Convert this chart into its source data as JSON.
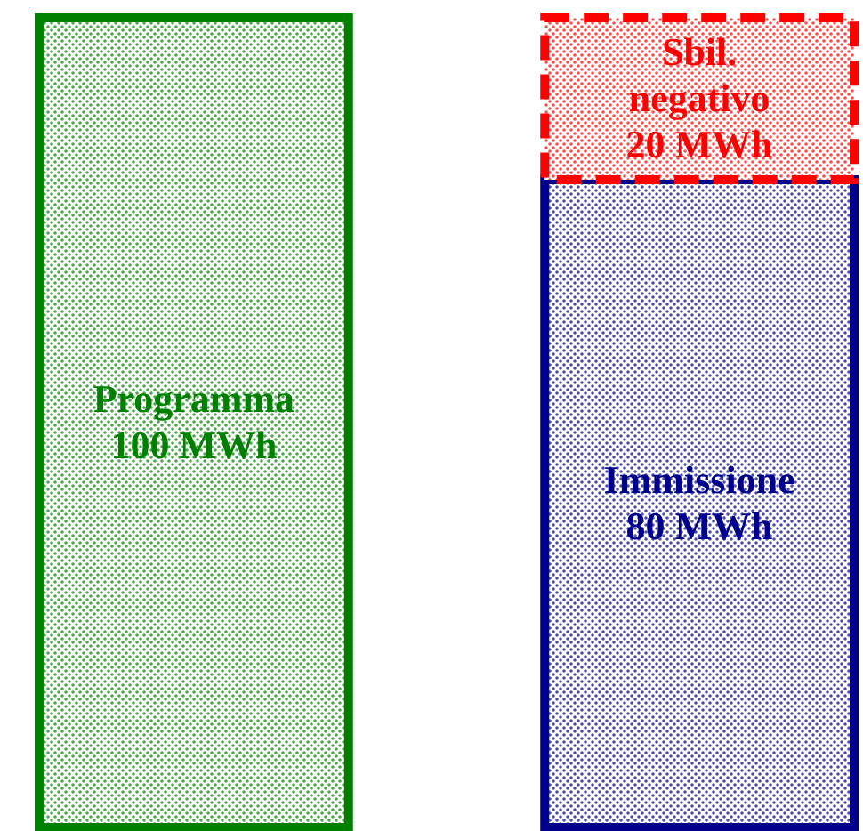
{
  "chart_data": {
    "type": "bar",
    "stacked": true,
    "categories": [
      null,
      null
    ],
    "series": [
      {
        "name": "Programma",
        "color": "#008000",
        "values": [
          100,
          null
        ],
        "value_labels": [
          "100 MWh",
          null
        ],
        "line_style": "solid"
      },
      {
        "name": "Immissione",
        "color": "#00008b",
        "values": [
          null,
          80
        ],
        "value_labels": [
          null,
          "80 MWh"
        ],
        "line_style": "solid"
      },
      {
        "name": "Sbil. negativo",
        "color": "#ff0000",
        "values": [
          null,
          20
        ],
        "value_labels": [
          null,
          "20 MWh"
        ],
        "line_style": "dashed"
      }
    ]
  }
}
